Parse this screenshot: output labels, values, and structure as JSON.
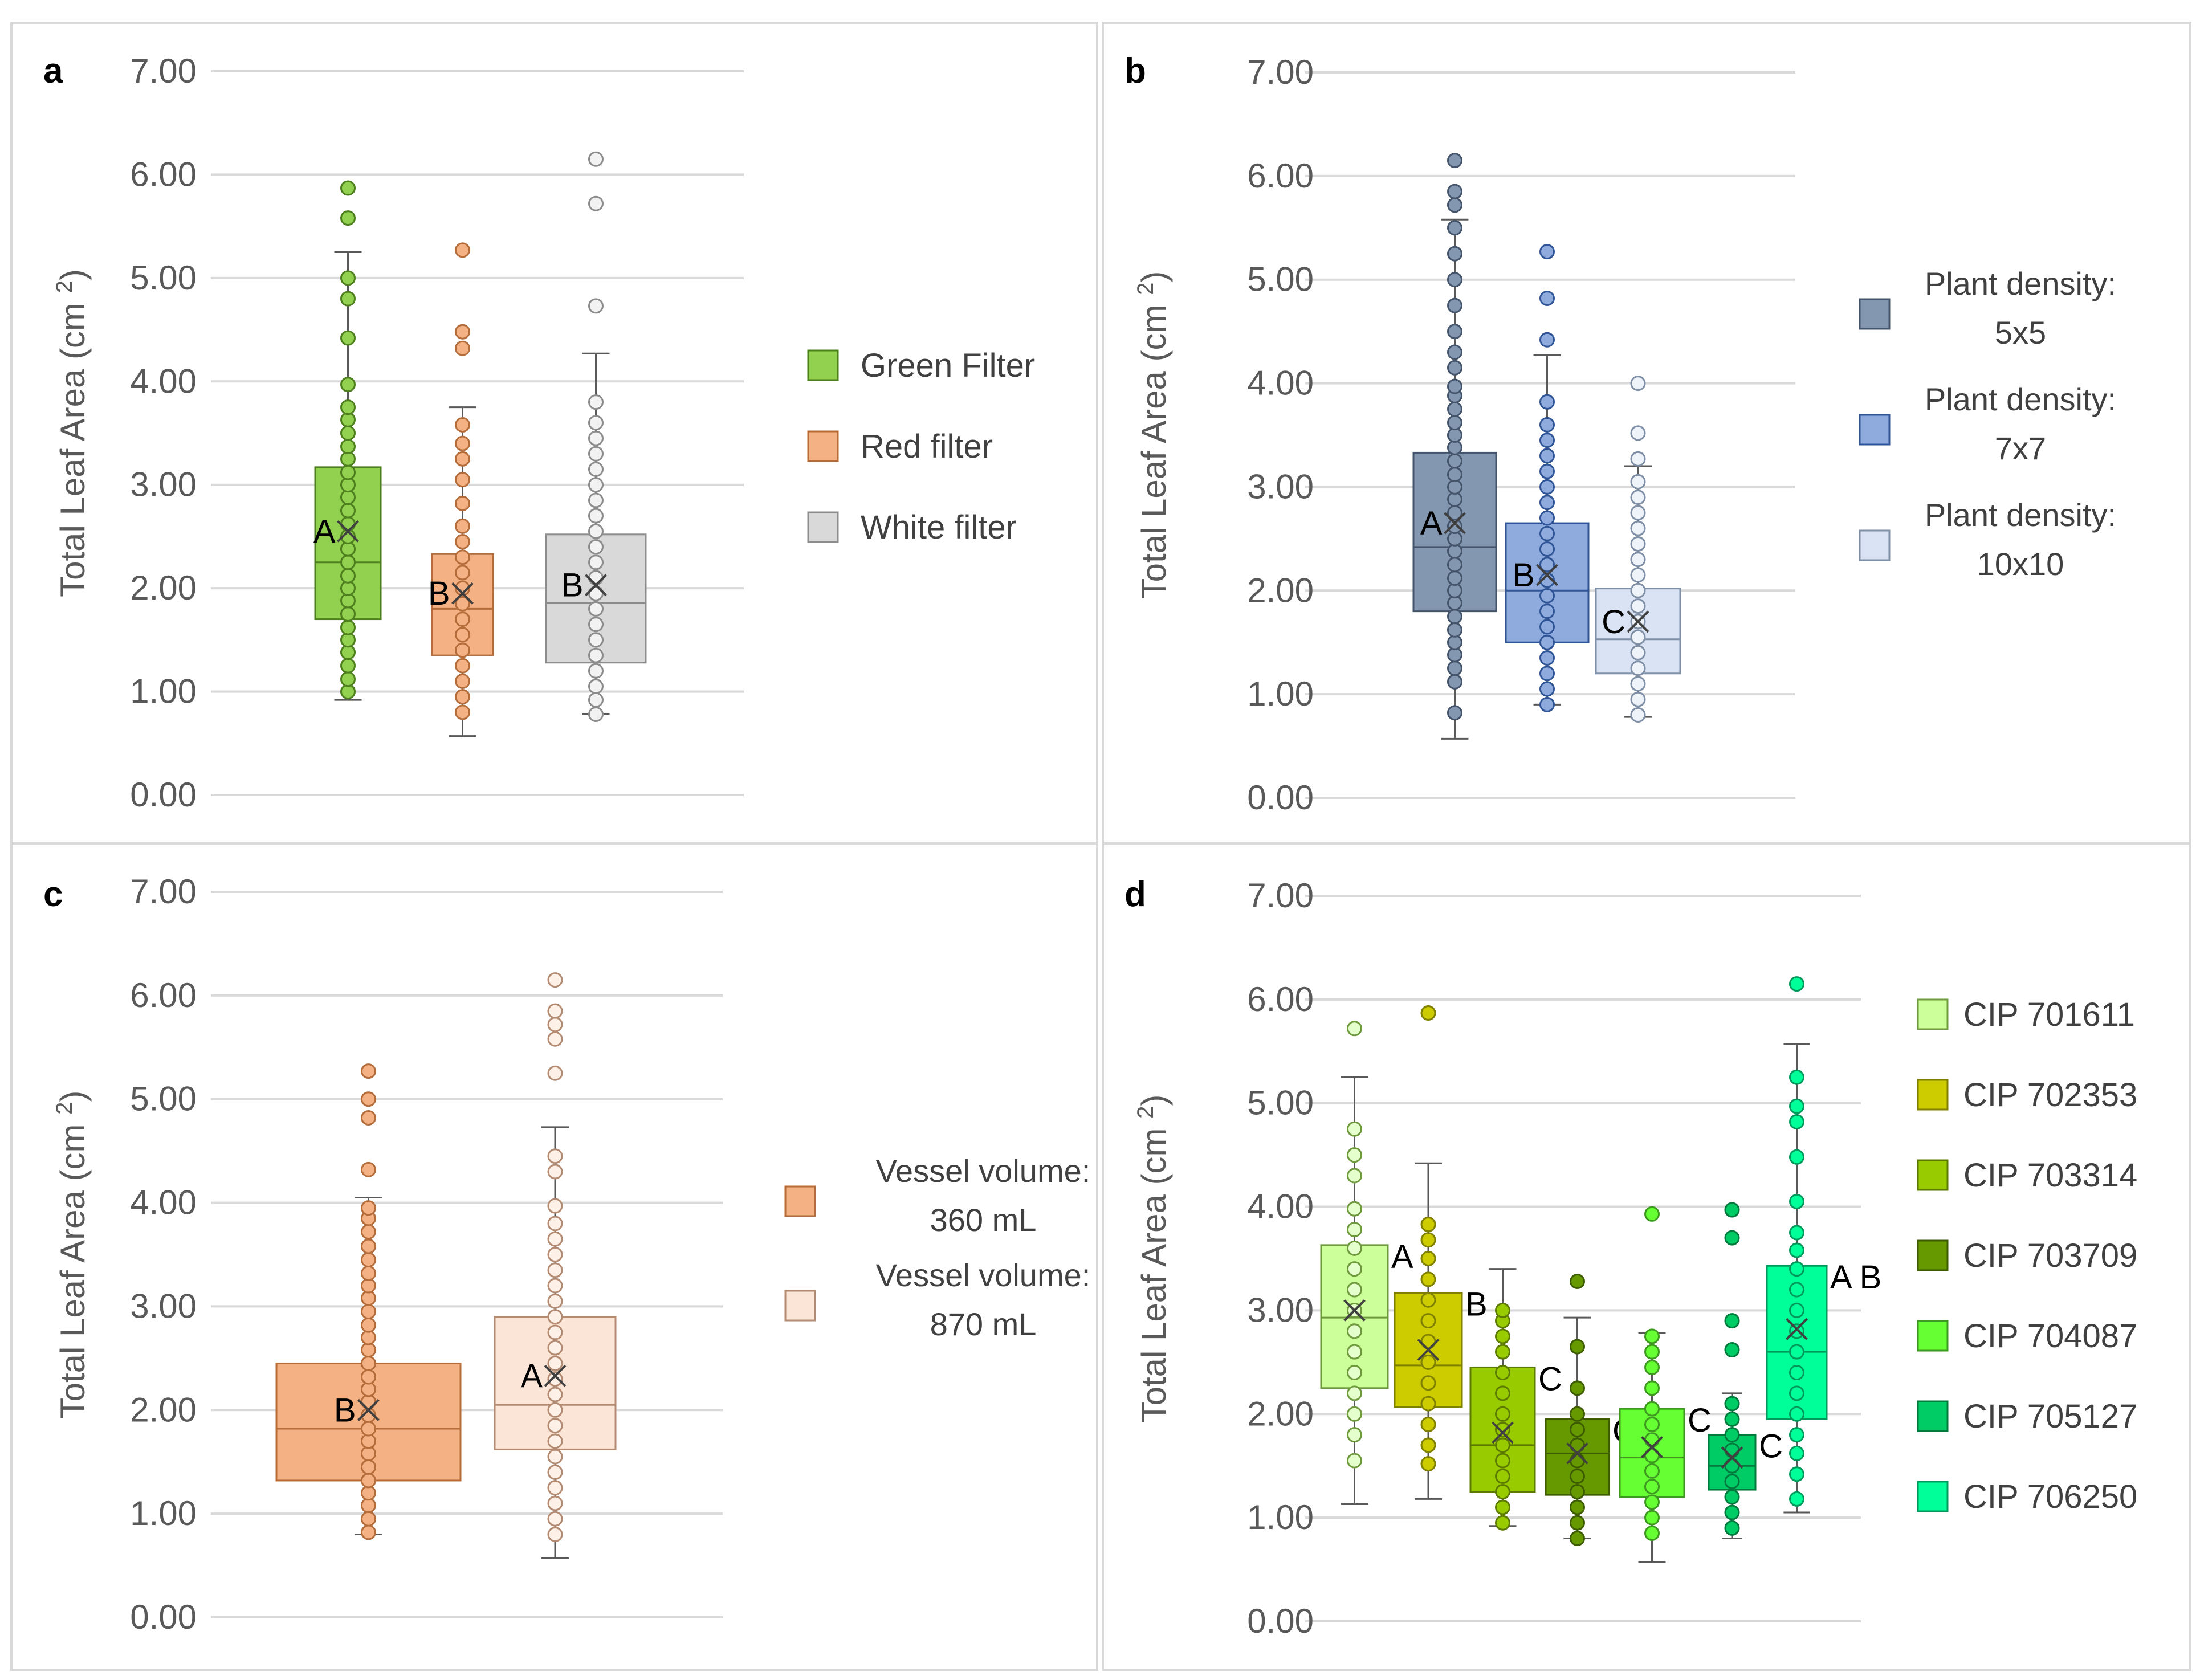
{
  "chart_data": [
    {
      "type": "boxplot",
      "panel_label": "a",
      "ylabel": "Total Leaf Area (cm",
      "ylabel_sup": "2",
      "ylabel_close": ")",
      "ylim": [
        0,
        7
      ],
      "yticks": [
        "0.00",
        "1.00",
        "2.00",
        "3.00",
        "4.00",
        "5.00",
        "6.00",
        "7.00"
      ],
      "grid": true,
      "legend_position": "right",
      "series": [
        {
          "name": "Green Filter",
          "legend": [
            "Green Filter"
          ],
          "color": "#92D050",
          "edge": "#4E7F1E",
          "dot_fill": "#92D050",
          "q1": 1.7,
          "median": 2.25,
          "q3": 3.17,
          "mean": 2.55,
          "whisker_low": 0.92,
          "whisker_high": 5.25,
          "letter": "A",
          "points": [
            1.0,
            1.12,
            1.25,
            1.38,
            1.5,
            1.62,
            1.75,
            1.88,
            2.0,
            2.12,
            2.25,
            2.38,
            2.5,
            2.62,
            2.75,
            2.88,
            3.0,
            3.12,
            3.25,
            3.37,
            3.5,
            3.63,
            3.75,
            3.97,
            4.42,
            4.8,
            5.0,
            5.58,
            5.87
          ]
        },
        {
          "name": "Red filter",
          "legend": [
            "Red filter"
          ],
          "color": "#F4B183",
          "edge": "#B36C3A",
          "dot_fill": "#F4B183",
          "q1": 1.35,
          "median": 1.8,
          "q3": 2.33,
          "mean": 1.95,
          "whisker_low": 0.57,
          "whisker_high": 3.75,
          "letter": "B",
          "points": [
            0.8,
            0.95,
            1.1,
            1.25,
            1.4,
            1.55,
            1.7,
            1.85,
            2.0,
            2.15,
            2.3,
            2.45,
            2.6,
            2.82,
            3.05,
            3.25,
            3.4,
            3.58,
            4.32,
            4.48,
            5.27
          ]
        },
        {
          "name": "White filter",
          "legend": [
            "White filter"
          ],
          "color": "#D9D9D9",
          "edge": "#8C8C8C",
          "dot_fill": "#F2F2F2",
          "q1": 1.28,
          "median": 1.86,
          "q3": 2.52,
          "mean": 2.03,
          "whisker_low": 0.78,
          "whisker_high": 4.27,
          "letter": "B",
          "points": [
            0.78,
            0.92,
            1.05,
            1.2,
            1.35,
            1.5,
            1.65,
            1.8,
            1.95,
            2.1,
            2.25,
            2.4,
            2.55,
            2.7,
            2.85,
            3.0,
            3.15,
            3.3,
            3.45,
            3.6,
            3.8,
            4.73,
            5.72,
            6.15
          ]
        }
      ]
    },
    {
      "type": "boxplot",
      "panel_label": "b",
      "ylabel": "Total Leaf Area (cm",
      "ylabel_sup": "2",
      "ylabel_close": ")",
      "ylim": [
        0,
        7
      ],
      "yticks": [
        "0.00",
        "1.00",
        "2.00",
        "3.00",
        "4.00",
        "5.00",
        "6.00",
        "7.00"
      ],
      "grid": true,
      "legend_position": "right",
      "series": [
        {
          "name": "Plant density: 5x5",
          "legend": [
            "Plant density:",
            "5x5"
          ],
          "color": "#8497B0",
          "edge": "#44546A",
          "dot_fill": "#8497B0",
          "q1": 1.8,
          "median": 2.42,
          "q3": 3.33,
          "mean": 2.65,
          "whisker_low": 0.57,
          "whisker_high": 5.58,
          "letter": "A",
          "points": [
            0.82,
            1.12,
            1.25,
            1.38,
            1.5,
            1.62,
            1.75,
            1.88,
            2.0,
            2.12,
            2.25,
            2.38,
            2.5,
            2.62,
            2.75,
            2.88,
            3.0,
            3.12,
            3.25,
            3.38,
            3.5,
            3.62,
            3.75,
            3.88,
            3.97,
            4.15,
            4.3,
            4.5,
            4.75,
            5.0,
            5.25,
            5.5,
            5.72,
            5.85,
            6.15
          ]
        },
        {
          "name": "Plant density: 7x7",
          "legend": [
            "Plant density:",
            "7x7"
          ],
          "color": "#8FAADC",
          "edge": "#2F5597",
          "dot_fill": "#8FAADC",
          "q1": 1.5,
          "median": 2.0,
          "q3": 2.65,
          "mean": 2.15,
          "whisker_low": 0.9,
          "whisker_high": 4.27,
          "letter": "B",
          "points": [
            0.9,
            1.05,
            1.2,
            1.35,
            1.5,
            1.65,
            1.8,
            1.95,
            2.1,
            2.25,
            2.4,
            2.55,
            2.7,
            2.85,
            3.0,
            3.15,
            3.3,
            3.45,
            3.6,
            3.82,
            4.42,
            4.82,
            5.27
          ]
        },
        {
          "name": "Plant density: 10x10",
          "legend": [
            "Plant density:",
            "10x10"
          ],
          "color": "#DAE3F3",
          "edge": "#7F8FA6",
          "dot_fill": "#EEF2F9",
          "q1": 1.2,
          "median": 1.53,
          "q3": 2.02,
          "mean": 1.7,
          "whisker_low": 0.78,
          "whisker_high": 3.2,
          "letter": "C",
          "points": [
            0.8,
            0.95,
            1.1,
            1.25,
            1.4,
            1.55,
            1.7,
            1.85,
            2.0,
            2.15,
            2.3,
            2.45,
            2.6,
            2.75,
            2.9,
            3.05,
            3.27,
            3.52,
            4.0
          ]
        }
      ]
    },
    {
      "type": "boxplot",
      "panel_label": "c",
      "ylabel": "Total Leaf Area (cm",
      "ylabel_sup": "2",
      "ylabel_close": ")",
      "ylim": [
        0,
        7
      ],
      "yticks": [
        "0.00",
        "1.00",
        "2.00",
        "3.00",
        "4.00",
        "5.00",
        "6.00",
        "7.00"
      ],
      "grid": true,
      "legend_position": "right",
      "series": [
        {
          "name": "Vessel volume: 360 mL",
          "legend": [
            "Vessel volume:",
            "360 mL"
          ],
          "color": "#F4B183",
          "edge": "#B36C3A",
          "dot_fill": "#F4B183",
          "q1": 1.32,
          "median": 1.82,
          "q3": 2.45,
          "mean": 2.0,
          "whisker_low": 0.8,
          "whisker_high": 4.05,
          "letter": "B",
          "points": [
            0.82,
            0.95,
            1.08,
            1.2,
            1.32,
            1.45,
            1.58,
            1.7,
            1.82,
            1.95,
            2.08,
            2.2,
            2.32,
            2.45,
            2.58,
            2.7,
            2.82,
            2.95,
            3.08,
            3.2,
            3.32,
            3.45,
            3.58,
            3.72,
            3.85,
            3.95,
            4.32,
            4.82,
            5.0,
            5.27
          ]
        },
        {
          "name": "Vessel volume: 870 mL",
          "legend": [
            "Vessel volume:",
            "870 mL"
          ],
          "color": "#FBE5D6",
          "edge": "#B38B72",
          "dot_fill": "#FDF0E7",
          "q1": 1.62,
          "median": 2.05,
          "q3": 2.9,
          "mean": 2.33,
          "whisker_low": 0.57,
          "whisker_high": 4.73,
          "letter": "A",
          "points": [
            0.8,
            0.95,
            1.1,
            1.25,
            1.4,
            1.55,
            1.7,
            1.85,
            2.0,
            2.15,
            2.3,
            2.45,
            2.6,
            2.75,
            2.9,
            3.05,
            3.2,
            3.35,
            3.5,
            3.65,
            3.8,
            3.97,
            4.3,
            4.45,
            5.25,
            5.58,
            5.72,
            5.85,
            6.15
          ]
        }
      ]
    },
    {
      "type": "boxplot",
      "panel_label": "d",
      "ylabel": "Total Leaf Area (cm",
      "ylabel_sup": "2",
      "ylabel_close": ")",
      "ylim": [
        0,
        7
      ],
      "yticks": [
        "0.00",
        "1.00",
        "2.00",
        "3.00",
        "4.00",
        "5.00",
        "6.00",
        "7.00"
      ],
      "grid": true,
      "legend_position": "right",
      "series": [
        {
          "name": "CIP 701611",
          "legend": [
            "CIP 701611"
          ],
          "color": "#CCFF99",
          "edge": "#6E9A3D",
          "dot_fill": "#E5FFCC",
          "q1": 2.25,
          "median": 2.93,
          "q3": 3.63,
          "mean": 3.0,
          "whisker_low": 1.13,
          "whisker_high": 5.25,
          "letter": "A",
          "points": [
            1.55,
            1.8,
            2.0,
            2.2,
            2.4,
            2.6,
            2.8,
            3.0,
            3.2,
            3.4,
            3.6,
            3.78,
            3.98,
            4.3,
            4.5,
            4.75,
            5.72
          ]
        },
        {
          "name": "CIP 702353",
          "legend": [
            "CIP 702353"
          ],
          "color": "#CCCC00",
          "edge": "#7F7F00",
          "dot_fill": "#CCCC00",
          "q1": 2.07,
          "median": 2.47,
          "q3": 3.17,
          "mean": 2.62,
          "whisker_low": 1.18,
          "whisker_high": 4.42,
          "letter": "B",
          "points": [
            1.52,
            1.7,
            1.9,
            2.1,
            2.3,
            2.5,
            2.7,
            2.9,
            3.1,
            3.3,
            3.5,
            3.68,
            3.83,
            5.87
          ]
        },
        {
          "name": "CIP 703314",
          "legend": [
            "CIP 703314"
          ],
          "color": "#99CC00",
          "edge": "#5C7A00",
          "dot_fill": "#99CC00",
          "q1": 1.25,
          "median": 1.7,
          "q3": 2.45,
          "mean": 1.82,
          "whisker_low": 0.92,
          "whisker_high": 3.4,
          "letter": "C",
          "points": [
            0.95,
            1.1,
            1.25,
            1.4,
            1.55,
            1.7,
            1.85,
            2.0,
            2.2,
            2.4,
            2.6,
            2.75,
            2.9,
            3.0
          ]
        },
        {
          "name": "CIP 703709",
          "legend": [
            "CIP 703709"
          ],
          "color": "#669900",
          "edge": "#3D5C00",
          "dot_fill": "#669900",
          "q1": 1.22,
          "median": 1.62,
          "q3": 1.95,
          "mean": 1.62,
          "whisker_low": 0.8,
          "whisker_high": 2.93,
          "letter": "C",
          "points": [
            0.8,
            0.95,
            1.1,
            1.25,
            1.4,
            1.55,
            1.7,
            1.85,
            2.0,
            2.25,
            2.65,
            3.28
          ]
        },
        {
          "name": "CIP 704087",
          "legend": [
            "CIP 704087"
          ],
          "color": "#66FF33",
          "edge": "#3D991F",
          "dot_fill": "#66FF33",
          "q1": 1.2,
          "median": 1.58,
          "q3": 2.05,
          "mean": 1.68,
          "whisker_low": 0.57,
          "whisker_high": 2.78,
          "letter": "C",
          "points": [
            0.85,
            1.0,
            1.15,
            1.3,
            1.45,
            1.6,
            1.75,
            1.9,
            2.05,
            2.25,
            2.45,
            2.6,
            2.75,
            3.93
          ]
        },
        {
          "name": "CIP 705127",
          "legend": [
            "CIP 705127"
          ],
          "color": "#00CC66",
          "edge": "#007A3D",
          "dot_fill": "#00CC66",
          "q1": 1.27,
          "median": 1.5,
          "q3": 1.8,
          "mean": 1.58,
          "whisker_low": 0.8,
          "whisker_high": 2.2,
          "letter": "C",
          "points": [
            0.9,
            1.05,
            1.2,
            1.35,
            1.5,
            1.65,
            1.8,
            1.95,
            2.1,
            2.62,
            2.9,
            3.7,
            3.97
          ]
        },
        {
          "name": "CIP 706250",
          "legend": [
            "CIP 706250"
          ],
          "color": "#00FF99",
          "edge": "#00995C",
          "dot_fill": "#00FF99",
          "q1": 1.95,
          "median": 2.6,
          "q3": 3.43,
          "mean": 2.82,
          "whisker_low": 1.05,
          "whisker_high": 5.57,
          "letter": "A B",
          "points": [
            1.18,
            1.42,
            1.62,
            1.8,
            2.0,
            2.2,
            2.4,
            2.6,
            2.8,
            3.0,
            3.2,
            3.4,
            3.58,
            3.75,
            4.05,
            4.48,
            4.82,
            4.97,
            5.25,
            6.15
          ]
        }
      ]
    }
  ]
}
